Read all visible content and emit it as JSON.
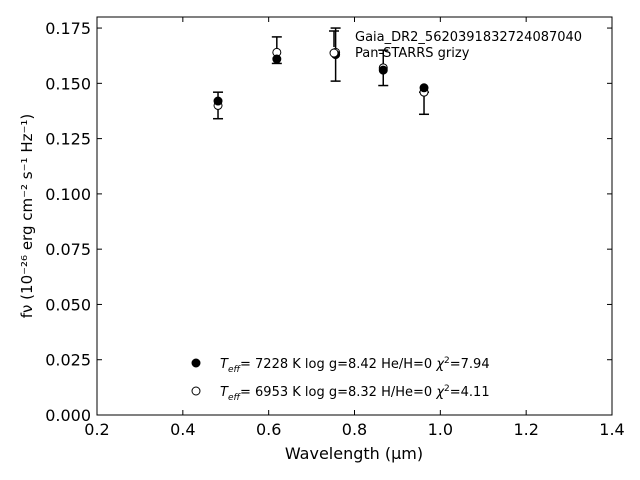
{
  "chart_data": {
    "type": "scatter",
    "title": "",
    "xlabel": "Wavelength (μm)",
    "ylabel": "fν (10⁻²⁶ erg cm⁻² s⁻¹ Hz⁻¹)",
    "xlim": [
      0.2,
      1.4
    ],
    "ylim": [
      0.0,
      0.18
    ],
    "xticks": [
      "0.2",
      "0.4",
      "0.6",
      "0.8",
      "1.0",
      "1.2",
      "1.4"
    ],
    "yticks": [
      "0.000",
      "0.025",
      "0.050",
      "0.075",
      "0.100",
      "0.125",
      "0.150",
      "0.175"
    ],
    "grid": false,
    "legend_position": "top-right",
    "series": [
      {
        "name": "Gaia_DR2_5620391832724087040",
        "kind": "observed-errorbar",
        "x": [
          0.482,
          0.619,
          0.756,
          0.867,
          0.962
        ],
        "y": [
          0.14,
          0.165,
          0.163,
          0.157,
          0.141
        ],
        "yerr": [
          0.006,
          0.006,
          0.012,
          0.008,
          0.005
        ]
      },
      {
        "name": "Pan-STARRS grizy",
        "kind": "open-circle",
        "x": [
          0.482,
          0.619,
          0.756,
          0.867,
          0.962
        ],
        "y": [
          0.14,
          0.164,
          0.164,
          0.157,
          0.146
        ]
      },
      {
        "kind": "filled-circle",
        "x": [
          0.482,
          0.619,
          0.756,
          0.867,
          0.962
        ],
        "y": [
          0.142,
          0.161,
          0.163,
          0.156,
          0.148
        ]
      }
    ],
    "model_fits": [
      {
        "marker": "filled",
        "teff": "7228 K",
        "logg": "8.42",
        "composition": "He/H=0",
        "chi2": "7.94"
      },
      {
        "marker": "open",
        "teff": "6953 K",
        "logg": "8.32",
        "composition": "H/He=0",
        "chi2": "4.11"
      }
    ]
  }
}
